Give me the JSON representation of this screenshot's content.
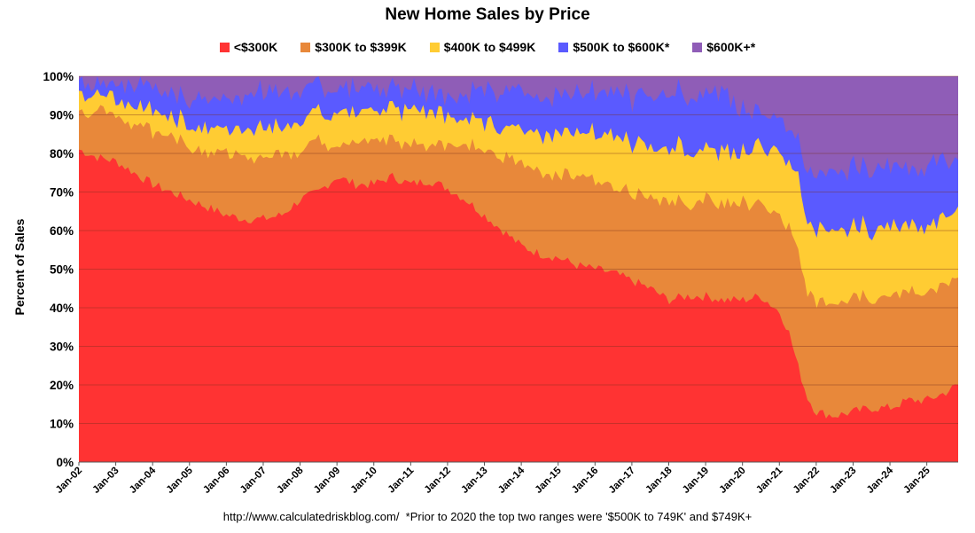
{
  "chart_data": {
    "type": "area",
    "stacked": true,
    "title": "New Home Sales by Price",
    "xlabel": "",
    "ylabel": "Percent of Sales",
    "ylim": [
      0,
      100
    ],
    "y_ticks": [
      "0%",
      "10%",
      "20%",
      "30%",
      "40%",
      "50%",
      "60%",
      "70%",
      "80%",
      "90%",
      "100%"
    ],
    "x_ticks": [
      "Jan-02",
      "Jan-03",
      "Jan-04",
      "Jan-05",
      "Jan-06",
      "Jan-07",
      "Jan-08",
      "Jan-09",
      "Jan-10",
      "Jan-11",
      "Jan-12",
      "Jan-13",
      "Jan-14",
      "Jan-15",
      "Jan-16",
      "Jan-17",
      "Jan-18",
      "Jan-19",
      "Jan-20",
      "Jan-21",
      "Jan-22",
      "Jan-23",
      "Jan-24",
      "Jan-25"
    ],
    "x_range": [
      2002.0,
      2025.85
    ],
    "legend_position": "top",
    "grid": true,
    "source_note": "http://www.calculatedriskblog.com/  *Prior to 2020 the top two ranges were '$500K to 749K' and $749K+",
    "x": [
      2002.0,
      2002.5,
      2003.0,
      2003.5,
      2004.0,
      2004.5,
      2005.0,
      2005.5,
      2006.0,
      2006.5,
      2007.0,
      2007.5,
      2008.0,
      2008.5,
      2009.0,
      2009.5,
      2010.0,
      2010.5,
      2011.0,
      2011.5,
      2012.0,
      2012.5,
      2013.0,
      2013.5,
      2014.0,
      2014.5,
      2015.0,
      2015.5,
      2016.0,
      2016.5,
      2017.0,
      2017.5,
      2018.0,
      2018.5,
      2019.0,
      2019.5,
      2020.0,
      2020.5,
      2021.0,
      2021.25,
      2021.5,
      2021.75,
      2022.0,
      2022.5,
      2023.0,
      2023.5,
      2024.0,
      2024.5,
      2025.0,
      2025.5,
      2025.85
    ],
    "series": [
      {
        "name": "<$300K",
        "color": "#ff3333",
        "values": [
          81,
          79,
          78,
          75,
          72,
          70,
          68,
          66,
          64,
          63,
          63,
          64,
          68,
          70,
          74,
          72,
          72,
          74,
          72,
          73,
          71,
          68,
          64,
          60,
          56,
          54,
          53,
          51,
          50,
          49,
          47,
          45,
          42,
          43,
          43,
          42,
          42,
          43,
          39,
          34,
          25,
          17,
          13,
          12,
          13,
          14,
          14,
          16,
          16,
          18,
          20
        ]
      },
      {
        "name": "$300K to $399K",
        "color": "#e8883a",
        "values": [
          10,
          12,
          12,
          13,
          14,
          15,
          14,
          15,
          16,
          16,
          16,
          16,
          13,
          13,
          9,
          11,
          11,
          10,
          10,
          10,
          12,
          15,
          17,
          19,
          21,
          22,
          22,
          23,
          23,
          22,
          23,
          24,
          25,
          24,
          25,
          25,
          25,
          24,
          25,
          27,
          29,
          28,
          29,
          30,
          30,
          29,
          29,
          28,
          28,
          28,
          27
        ]
      },
      {
        "name": "$400K to $499K",
        "color": "#ffcc33",
        "values": [
          4,
          4,
          4,
          5,
          5,
          5,
          6,
          6,
          7,
          7,
          8,
          7,
          8,
          7,
          8,
          8,
          8,
          8,
          9,
          9,
          7,
          7,
          7,
          8,
          9,
          10,
          11,
          12,
          12,
          13,
          13,
          13,
          14,
          14,
          13,
          14,
          13,
          15,
          16,
          17,
          19,
          18,
          19,
          18,
          18,
          18,
          18,
          18,
          17,
          17,
          17
        ]
      },
      {
        "name": "$500K to $600K*",
        "color": "#5a5aff",
        "values": [
          3,
          3,
          4,
          5,
          6,
          6,
          7,
          8,
          8,
          9,
          9,
          9,
          8,
          7,
          6,
          6,
          6,
          5,
          6,
          5,
          6,
          6,
          8,
          9,
          10,
          10,
          10,
          10,
          11,
          11,
          12,
          13,
          14,
          14,
          15,
          15,
          10,
          9,
          9,
          9,
          9,
          14,
          14,
          16,
          16,
          16,
          16,
          15,
          16,
          14,
          13
        ]
      },
      {
        "name": "$600K+*",
        "color": "#8f5db7",
        "values": [
          2,
          2,
          2,
          2,
          3,
          4,
          5,
          5,
          5,
          5,
          4,
          4,
          3,
          3,
          3,
          3,
          3,
          3,
          3,
          3,
          4,
          4,
          4,
          4,
          4,
          4,
          4,
          4,
          4,
          5,
          5,
          5,
          5,
          5,
          4,
          4,
          10,
          9,
          11,
          13,
          18,
          23,
          25,
          24,
          23,
          23,
          23,
          23,
          23,
          23,
          23
        ]
      }
    ]
  }
}
